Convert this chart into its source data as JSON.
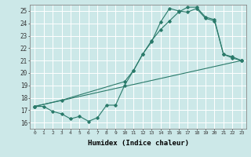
{
  "xlabel": "Humidex (Indice chaleur)",
  "xlim": [
    -0.5,
    23.5
  ],
  "ylim": [
    15.5,
    25.5
  ],
  "xticks": [
    0,
    1,
    2,
    3,
    4,
    5,
    6,
    7,
    8,
    9,
    10,
    11,
    12,
    13,
    14,
    15,
    16,
    17,
    18,
    19,
    20,
    21,
    22,
    23
  ],
  "yticks": [
    16,
    17,
    18,
    19,
    20,
    21,
    22,
    23,
    24,
    25
  ],
  "line_color": "#2a7a6a",
  "bg_color": "#cce8e8",
  "grid_color": "#ffffff",
  "line1_x": [
    0,
    1,
    2,
    3,
    4,
    5,
    6,
    7,
    8,
    9,
    10,
    11,
    12,
    13,
    14,
    15,
    16,
    17,
    18,
    19,
    20,
    21,
    22,
    23
  ],
  "line1_y": [
    17.3,
    17.3,
    16.9,
    16.7,
    16.3,
    16.5,
    16.1,
    16.4,
    17.4,
    17.4,
    19.0,
    20.2,
    21.5,
    22.5,
    24.1,
    25.2,
    25.0,
    24.9,
    25.2,
    24.4,
    24.2,
    21.5,
    21.2,
    21.0
  ],
  "line2_x": [
    0,
    3,
    10,
    11,
    12,
    13,
    14,
    15,
    16,
    17,
    18,
    19,
    20,
    21,
    22,
    23
  ],
  "line2_y": [
    17.3,
    17.8,
    19.3,
    20.2,
    21.5,
    22.6,
    23.5,
    24.2,
    24.9,
    25.3,
    25.3,
    24.5,
    24.3,
    21.5,
    21.3,
    21.0
  ],
  "line3_x": [
    0,
    23
  ],
  "line3_y": [
    17.3,
    21.0
  ]
}
